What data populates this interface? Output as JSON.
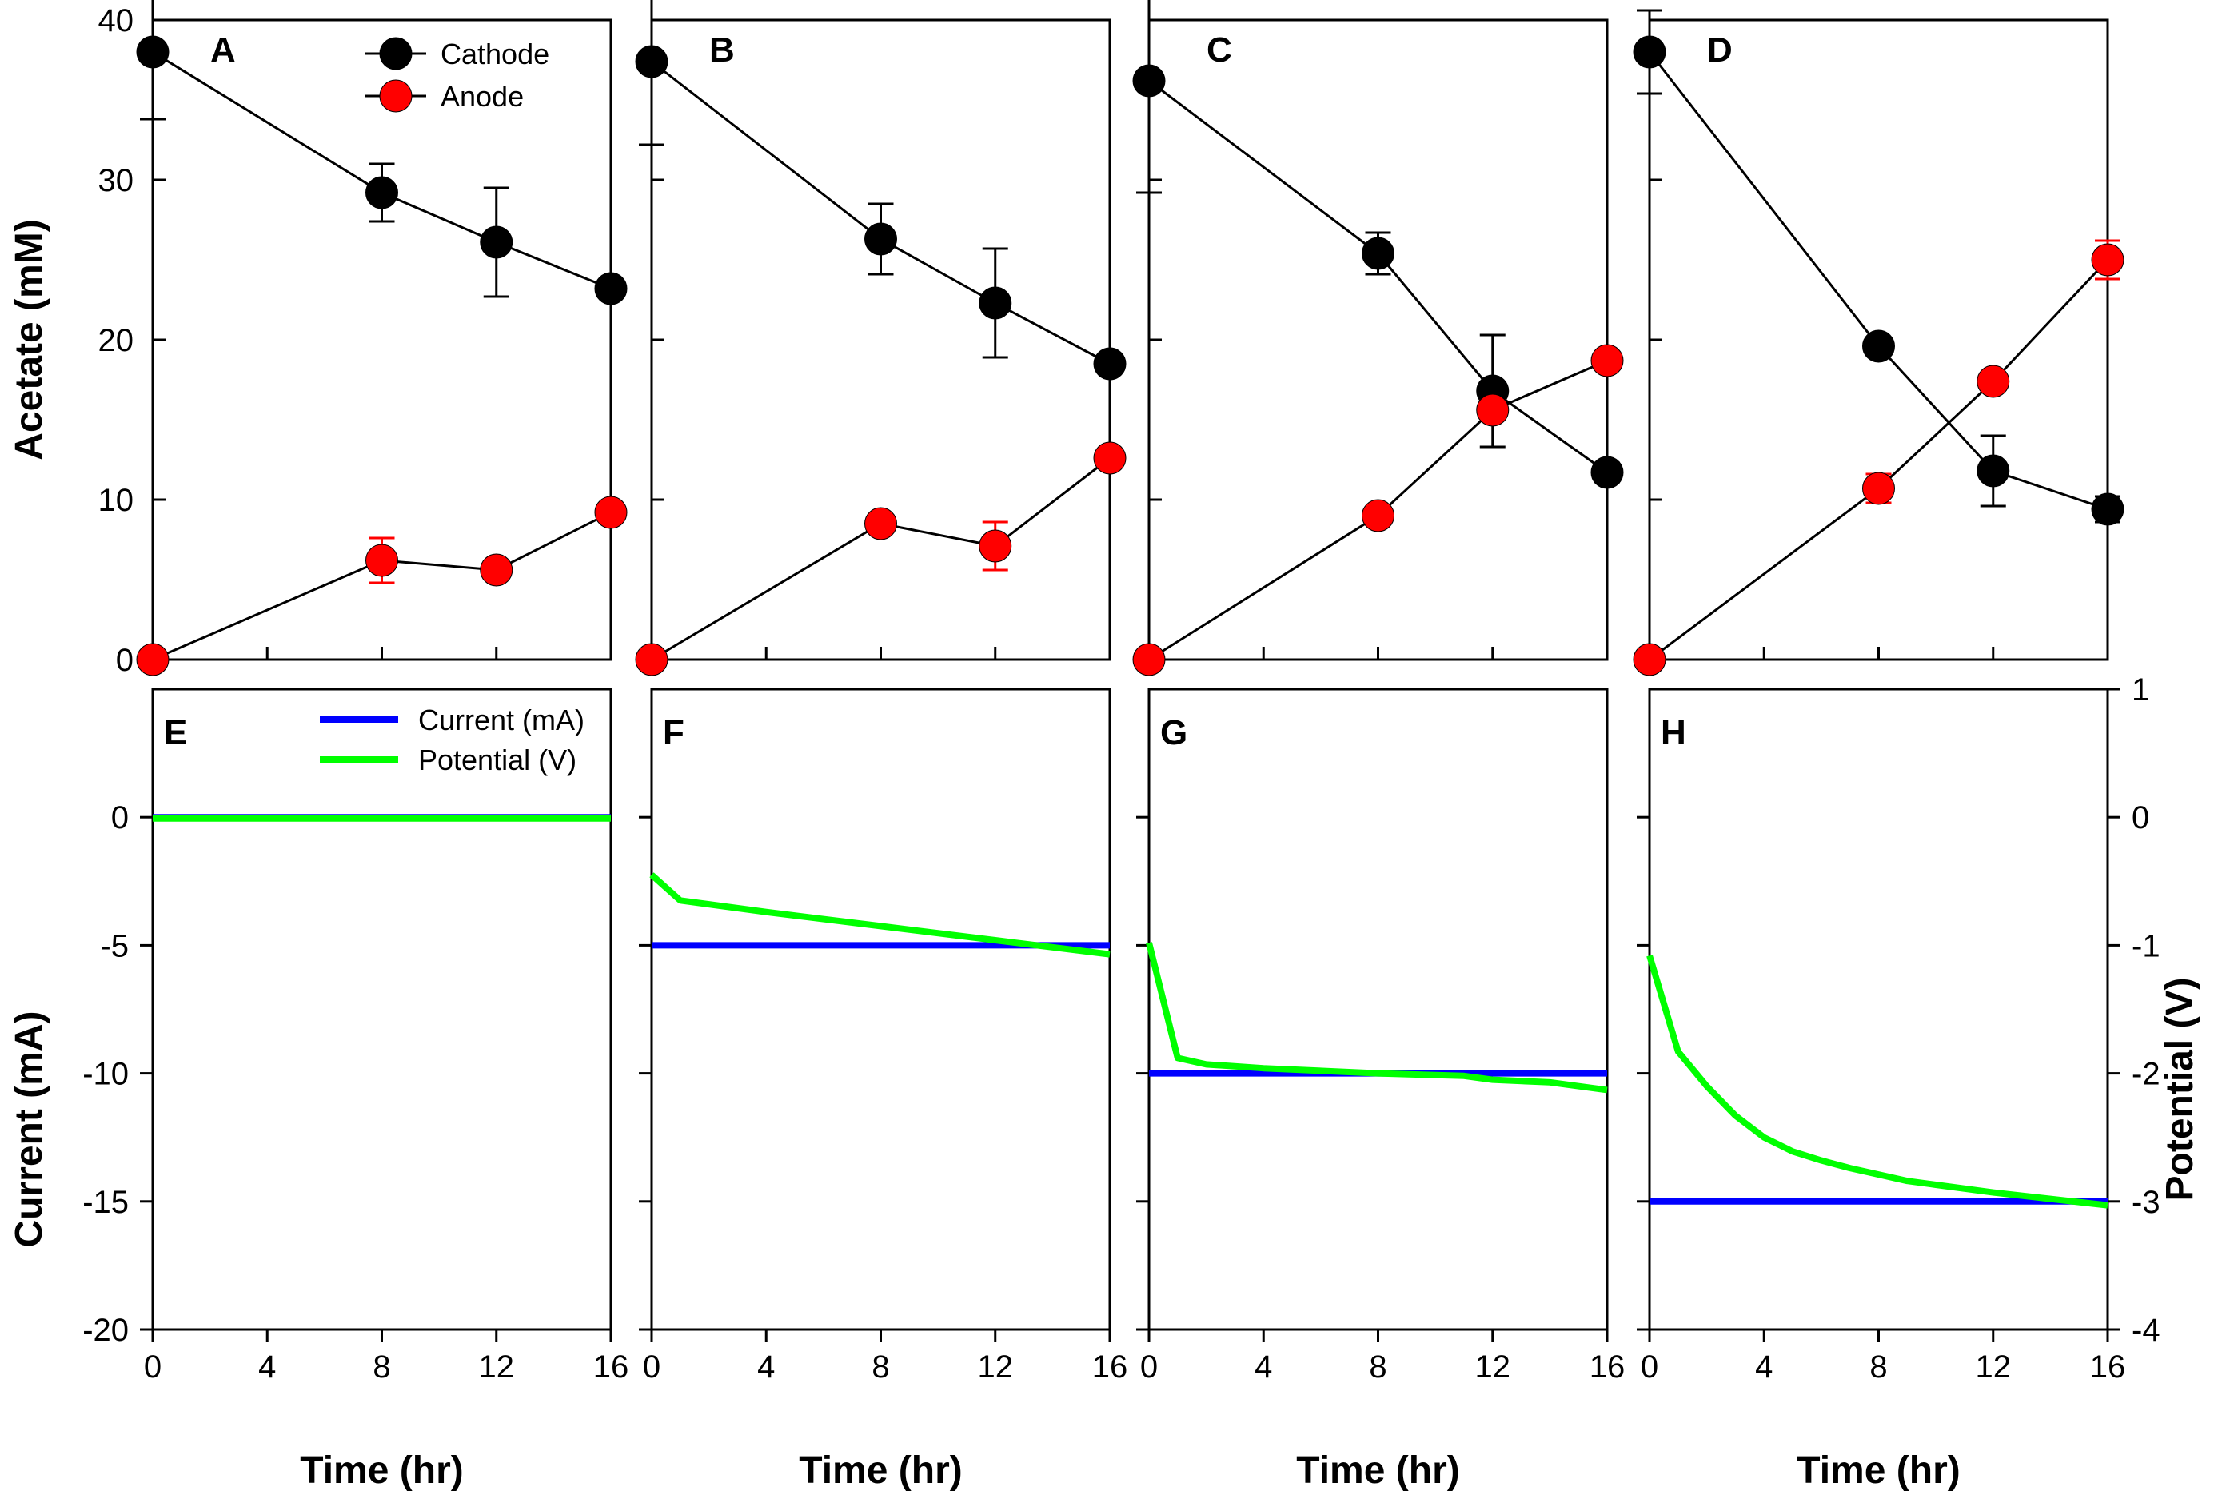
{
  "chart_data": {
    "type": "line",
    "colors": {
      "cathode": "#000000",
      "anode": "#ff0000",
      "current": "#0000ff",
      "potential": "#00ff00",
      "connector": "#000000"
    },
    "top_axis": {
      "ylabel": "Acetate (mM)",
      "ylim": [
        0,
        40
      ],
      "yticks": [
        "0",
        "10",
        "20",
        "30",
        "40"
      ],
      "legend": [
        {
          "label": "Cathode",
          "color": "#000000"
        },
        {
          "label": "Anode",
          "color": "#ff0000"
        }
      ]
    },
    "bottom_axis": {
      "ylabel_left": "Current (mA)",
      "ylabel_right": "Potential (V)",
      "ylim_left": [
        -20,
        5
      ],
      "ylim_right": [
        -4,
        1
      ],
      "yticks_left": [
        "0",
        "-5",
        "-10",
        "-15",
        "-20"
      ],
      "yticks_right": [
        "1",
        "0",
        "-1",
        "-2",
        "-3",
        "-4"
      ],
      "legend": [
        {
          "label": "Current (mA)",
          "color": "#0000ff"
        },
        {
          "label": "Potential (V)",
          "color": "#00ff00"
        }
      ]
    },
    "xaxis": {
      "xlabel": "Time (hr)",
      "xlim": [
        0,
        16
      ],
      "xticks": [
        "0",
        "4",
        "8",
        "12",
        "16"
      ]
    },
    "top_panels": [
      {
        "letter": "A",
        "series": [
          {
            "name": "Cathode",
            "x": [
              0,
              8,
              12,
              16
            ],
            "y": [
              38.0,
              29.2,
              26.1,
              23.2
            ],
            "err": [
              4.2,
              1.8,
              3.4,
              0.5
            ]
          },
          {
            "name": "Anode",
            "x": [
              0,
              8,
              12,
              16
            ],
            "y": [
              0.0,
              6.2,
              5.6,
              9.2
            ],
            "err": [
              0,
              1.4,
              0.3,
              0.5
            ]
          }
        ]
      },
      {
        "letter": "B",
        "series": [
          {
            "name": "Cathode",
            "x": [
              0,
              8,
              12,
              16
            ],
            "y": [
              37.4,
              26.3,
              22.3,
              18.5
            ],
            "err": [
              5.2,
              2.2,
              3.4,
              0.4
            ]
          },
          {
            "name": "Anode",
            "x": [
              0,
              8,
              12,
              16
            ],
            "y": [
              0.0,
              8.5,
              7.1,
              12.6
            ],
            "err": [
              0,
              0.4,
              1.5,
              0.4
            ]
          }
        ]
      },
      {
        "letter": "C",
        "series": [
          {
            "name": "Cathode",
            "x": [
              0,
              8,
              12,
              16
            ],
            "y": [
              36.2,
              25.4,
              16.8,
              11.7
            ],
            "err": [
              7.0,
              1.3,
              3.5,
              0.6
            ]
          },
          {
            "name": "Anode",
            "x": [
              0,
              8,
              12,
              16
            ],
            "y": [
              0.0,
              9.0,
              15.6,
              18.7
            ],
            "err": [
              0,
              0.4,
              0.6,
              0.4
            ]
          }
        ]
      },
      {
        "letter": "D",
        "series": [
          {
            "name": "Cathode",
            "x": [
              0,
              8,
              12,
              16
            ],
            "y": [
              38.0,
              19.6,
              11.8,
              9.4
            ],
            "err": [
              2.6,
              0.4,
              2.2,
              0.8
            ]
          },
          {
            "name": "Anode",
            "x": [
              0,
              8,
              12,
              16
            ],
            "y": [
              0.0,
              10.7,
              17.4,
              25.0
            ],
            "err": [
              0,
              0.9,
              0.4,
              1.2
            ]
          }
        ]
      }
    ],
    "bottom_panels": [
      {
        "letter": "E",
        "current": {
          "x": [
            0,
            16
          ],
          "y": [
            0,
            0
          ]
        },
        "potential": {
          "x": [
            0,
            16
          ],
          "y": [
            -0.01,
            -0.01
          ]
        }
      },
      {
        "letter": "F",
        "current": {
          "x": [
            0,
            16
          ],
          "y": [
            -5,
            -5
          ]
        },
        "potential": {
          "x": [
            0,
            1,
            4,
            8,
            12,
            16
          ],
          "y": [
            -0.45,
            -0.65,
            -0.74,
            -0.85,
            -0.96,
            -1.07
          ]
        }
      },
      {
        "letter": "G",
        "current": {
          "x": [
            0,
            16
          ],
          "y": [
            -10,
            -10
          ]
        },
        "potential": {
          "x": [
            0,
            1,
            2,
            4,
            8,
            11,
            12,
            14,
            16
          ],
          "y": [
            -0.98,
            -1.88,
            -1.93,
            -1.96,
            -2.0,
            -2.02,
            -2.05,
            -2.07,
            -2.13
          ]
        }
      },
      {
        "letter": "H",
        "current": {
          "x": [
            0,
            16
          ],
          "y": [
            -15,
            -15
          ]
        },
        "potential": {
          "x": [
            0,
            1,
            2,
            3,
            4,
            5,
            6,
            7,
            8,
            9,
            10,
            12,
            14,
            16
          ],
          "y": [
            -1.08,
            -1.83,
            -2.1,
            -2.33,
            -2.5,
            -2.61,
            -2.68,
            -2.74,
            -2.79,
            -2.84,
            -2.87,
            -2.93,
            -2.98,
            -3.03
          ]
        }
      }
    ]
  }
}
